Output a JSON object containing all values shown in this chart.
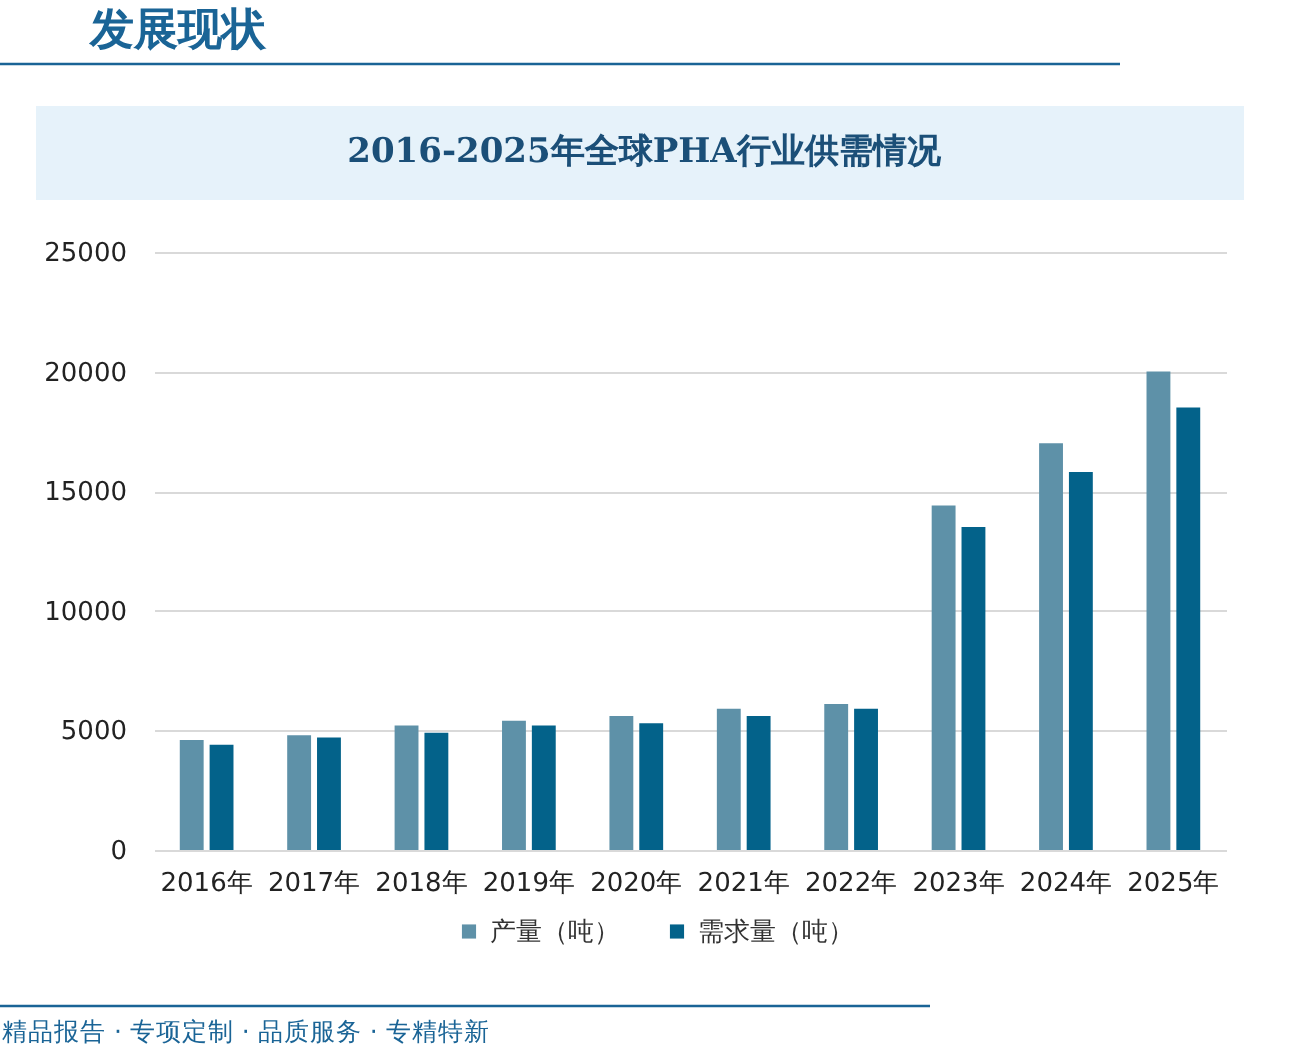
{
  "chart_data": {
    "type": "bar",
    "title": "2016-2025年全球PHA行业供需情况",
    "annotations": [
      "发展现状",
      "精品报告 · 专项定制 · 品质服务 · 专精特新"
    ],
    "categories": [
      "2016年",
      "2017年",
      "2018年",
      "2019年",
      "2020年",
      "2021年",
      "2022年",
      "2023年",
      "2024年",
      "2025年"
    ],
    "series": [
      {
        "name": "产量（吨）",
        "color": "#5e91a8",
        "values": [
          4600,
          4800,
          5200,
          5400,
          5600,
          5900,
          6100,
          14400,
          17000,
          20000
        ]
      },
      {
        "name": "需求量（吨）",
        "color": "#03628a",
        "values": [
          4400,
          4700,
          4900,
          5200,
          5300,
          5600,
          5900,
          13500,
          15800,
          18500
        ]
      }
    ],
    "ylim": [
      0,
      25000
    ],
    "yticks": [
      0,
      5000,
      10000,
      15000,
      20000,
      25000
    ],
    "grid": "y",
    "legend": "bottom"
  }
}
